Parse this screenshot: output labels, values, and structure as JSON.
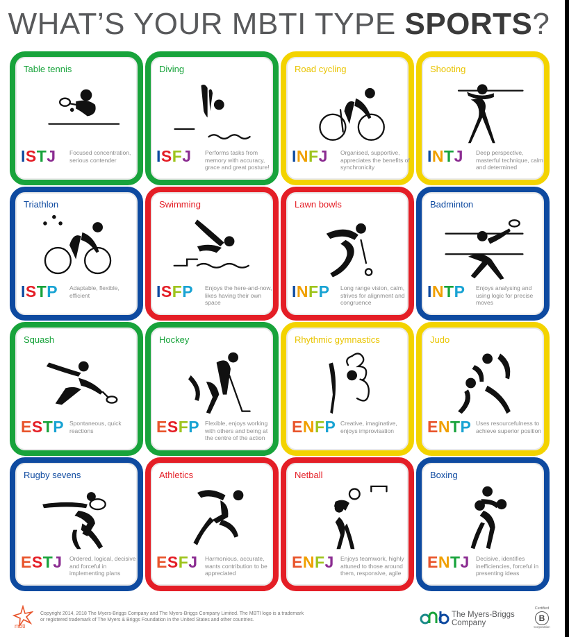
{
  "title": {
    "prefix": "WHAT’S YOUR MBTI TYPE ",
    "emphasis": "SPORTS",
    "suffix": "?"
  },
  "colors": {
    "green": "#18a33b",
    "yellow": "#f3d300",
    "blue": "#0e4aa0",
    "red": "#e41e26",
    "grey_text": "#8c8c8c"
  },
  "type_letter_colors": {
    "E": "#e8542b",
    "I": "#0e4aa0",
    "S": "#e41e26",
    "N": "#f0a000",
    "T": "#18a33b",
    "F": "#9ec41d",
    "J": "#8b2c91",
    "P": "#18a3d3"
  },
  "cards": [
    {
      "sport": "Table tennis",
      "type": "ISTJ",
      "desc": "Focused concentration, serious contender",
      "color": "green",
      "icon": "table-tennis-icon"
    },
    {
      "sport": "Diving",
      "type": "ISFJ",
      "desc": "Performs tasks from memory with accuracy, grace and great posture!",
      "color": "green",
      "icon": "diving-icon"
    },
    {
      "sport": "Road cycling",
      "type": "INFJ",
      "desc": "Organised, supportive, appreciates the benefits of synchronicity",
      "color": "yellow",
      "icon": "road-cycling-icon"
    },
    {
      "sport": "Shooting",
      "type": "INTJ",
      "desc": "Deep perspective, masterful technique, calm and determined",
      "color": "yellow",
      "icon": "shooting-icon"
    },
    {
      "sport": "Triathlon",
      "type": "ISTP",
      "desc": "Adaptable, flexible, efficient",
      "color": "blue",
      "icon": "triathlon-icon"
    },
    {
      "sport": "Swimming",
      "type": "ISFP",
      "desc": "Enjoys the here-and-now, likes having their own space",
      "color": "red",
      "icon": "swimming-icon"
    },
    {
      "sport": "Lawn bowls",
      "type": "INFP",
      "desc": "Long range vision, calm, strives for alignment and congruence",
      "color": "red",
      "icon": "lawn-bowls-icon"
    },
    {
      "sport": "Badminton",
      "type": "INTP",
      "desc": "Enjoys analysing and using logic for precise moves",
      "color": "blue",
      "icon": "badminton-icon"
    },
    {
      "sport": "Squash",
      "type": "ESTP",
      "desc": "Spontaneous, quick reactions",
      "color": "green",
      "icon": "squash-icon"
    },
    {
      "sport": "Hockey",
      "type": "ESFP",
      "desc": "Flexible, enjoys working with others and being at the centre of the action",
      "color": "green",
      "icon": "hockey-icon"
    },
    {
      "sport": "Rhythmic gymnastics",
      "type": "ENFP",
      "desc": "Creative, imaginative, enjoys improvisation",
      "color": "yellow",
      "icon": "rhythmic-gymnastics-icon"
    },
    {
      "sport": "Judo",
      "type": "ENTP",
      "desc": "Uses resourcefulness to achieve superior position",
      "color": "yellow",
      "icon": "judo-icon"
    },
    {
      "sport": "Rugby sevens",
      "type": "ESTJ",
      "desc": "Ordered, logical, decisive and forceful in implementing plans",
      "color": "blue",
      "icon": "rugby-icon"
    },
    {
      "sport": "Athletics",
      "type": "ESFJ",
      "desc": "Harmonious, accurate, wants contribution to be appreciated",
      "color": "red",
      "icon": "athletics-icon"
    },
    {
      "sport": "Netball",
      "type": "ENFJ",
      "desc": "Enjoys teamwork, highly attuned to those around them, responsive, agile",
      "color": "red",
      "icon": "netball-icon"
    },
    {
      "sport": "Boxing",
      "type": "ENTJ",
      "desc": "Decisive, identifies inefficiencies, forceful in presenting ideas",
      "color": "blue",
      "icon": "boxing-icon"
    }
  ],
  "footer": {
    "copyright": "Copyright 2014, 2018 The Myers-Briggs Company and The Myers-Briggs Company Limited. The MBTI logo is a trademark or registered trademark of The Myers & Briggs Foundation in the United States and other countries.",
    "mbti_logo_text": "mbti",
    "company_line1": "The Myers-Briggs",
    "company_line2": "Company",
    "bcorp_certified": "Certified",
    "bcorp_letter": "B",
    "bcorp_corporation": "Corporation"
  }
}
